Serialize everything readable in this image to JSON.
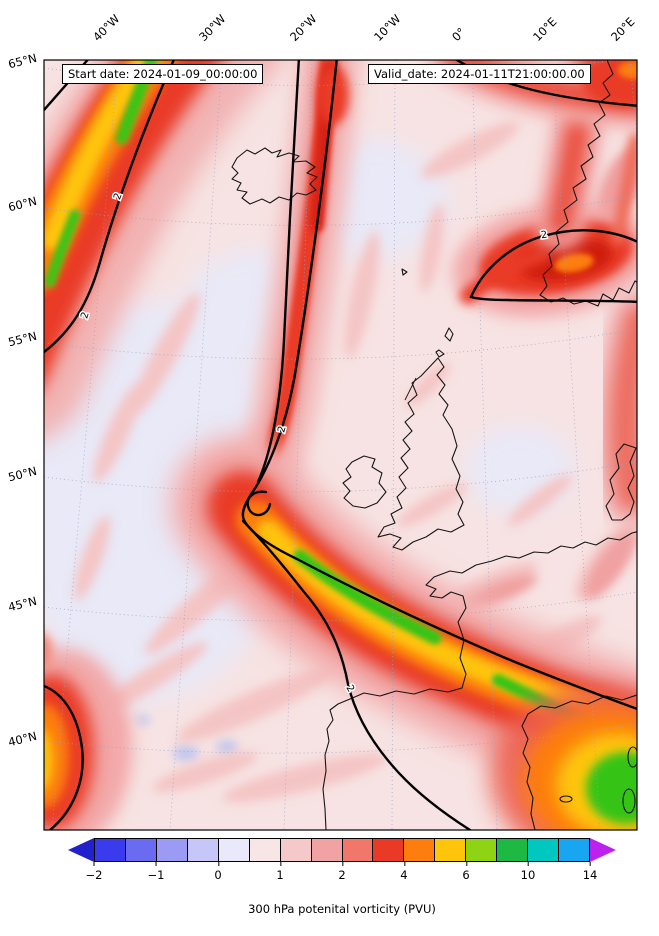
{
  "titles": {
    "start_date": "Start date: 2024-01-09_00:00:00",
    "valid_date": "Valid_date: 2024-01-11T21:00:00.00"
  },
  "caption": "300 hPa potenital vorticity (PVU)",
  "axes": {
    "lon_ticks": [
      {
        "label": "40°W"
      },
      {
        "label": "30°W"
      },
      {
        "label": "20°W"
      },
      {
        "label": "10°W"
      },
      {
        "label": "0°"
      },
      {
        "label": "10°E"
      },
      {
        "label": "20°E"
      }
    ],
    "lat_ticks": [
      {
        "label": "65°N"
      },
      {
        "label": "60°N"
      },
      {
        "label": "55°N"
      },
      {
        "label": "50°N"
      },
      {
        "label": "45°N"
      },
      {
        "label": "40°N"
      }
    ]
  },
  "contour": {
    "level": 2,
    "label": "2"
  },
  "colorbar": {
    "orientation": "horizontal",
    "levels": [
      -2,
      -1.5,
      -1,
      -0.5,
      0,
      0.5,
      1,
      1.5,
      2,
      3,
      4,
      5,
      6,
      8,
      10,
      12,
      14
    ],
    "tick_labels": [
      "−2",
      "−1",
      "0",
      "1",
      "2",
      "4",
      "6",
      "10",
      "14"
    ],
    "segment_colors": [
      "#3b3bee",
      "#6b6bf2",
      "#9b9bf5",
      "#c6c6f8",
      "#e9e9fb",
      "#f8e6e6",
      "#f5c9c9",
      "#f1a3a3",
      "#f0776a",
      "#e93a28",
      "#fd7d0e",
      "#fec50a",
      "#8fd414",
      "#1eb943",
      "#00c8c0",
      "#19a6f0"
    ],
    "under_color": "#2222cc",
    "over_color": "#bb22ee",
    "units": "PVU"
  },
  "chart_data": {
    "type": "heatmap",
    "subtype": "filled-contour-map",
    "title": "300 hPa potenital vorticity (PVU)",
    "field": "300 hPa potential vorticity",
    "units": "PVU",
    "start_date": "2024-01-09_00:00:00",
    "valid_date": "2024-01-11T21:00:00.00",
    "projection": "conic over North Atlantic / Europe",
    "x_axis": {
      "label": "longitude",
      "ticks": [
        "40°W",
        "30°W",
        "20°W",
        "10°W",
        "0°",
        "10°E",
        "20°E"
      ]
    },
    "y_axis": {
      "label": "latitude",
      "ticks": [
        "65°N",
        "60°N",
        "55°N",
        "50°N",
        "45°N",
        "40°N"
      ]
    },
    "color_levels_pvu": [
      -2,
      -1.5,
      -1,
      -0.5,
      0,
      0.5,
      1,
      1.5,
      2,
      3,
      4,
      5,
      6,
      8,
      10,
      12,
      14
    ],
    "thick_contour_level_pvu": 2,
    "features": [
      {
        "name": "northwest_jet_band",
        "description": "Elongated band of high PV sloping from the NW corner (~40°W 65°N, SE of Greenland) SSW along the left edge to ~54°N, outlined by the 2-PVU contour",
        "core_pvu": "4-10 with yellow/green streaks"
      },
      {
        "name": "main_pv_streamer",
        "description": "Narrow PV streamer descending from the top (~22°W) past the west of Ireland, hooking at ~48°N 27°W, then sweeping ESE across the Bay of Biscay and southern France toward the Mediterranean",
        "core_pvu": "4-10 (orange/yellow with green core)"
      },
      {
        "name": "scandinavia_maximum",
        "description": "Closed 2-PVU contour over southern Norway/Skagerrak (~58-60°N, 5-15°E) with dark red core and small orange maximum",
        "core_pvu": "3-5"
      },
      {
        "name": "top_edge_band",
        "description": "Red band of elevated PV along the top edge from ~0° to 20°E connecting toward the Scandinavian maximum",
        "core_pvu": "2-4"
      },
      {
        "name": "southeast_corner_maximum",
        "description": "Broad high-PV region over the western Mediterranean in the bottom-right corner merging with the streamer",
        "core_pvu": "4-10 (yellow/green)"
      },
      {
        "name": "west_edge_blob",
        "description": "Small high-PV blob on the left edge near 40-43°N with orange/yellow core, enclosed by a 2-PVU contour",
        "core_pvu": "4-6"
      },
      {
        "name": "background",
        "description": "Broad areas of 0-1 PVU (pale pink/lavender) with weak 1-2 PVU filaments; small patches of slightly negative PV (light blue) near 39°N 28-32°W"
      }
    ],
    "legend": {
      "colorbar_ticks": [
        "−2",
        "−1",
        "0",
        "1",
        "2",
        "4",
        "6",
        "10",
        "14"
      ],
      "position": "bottom"
    }
  }
}
